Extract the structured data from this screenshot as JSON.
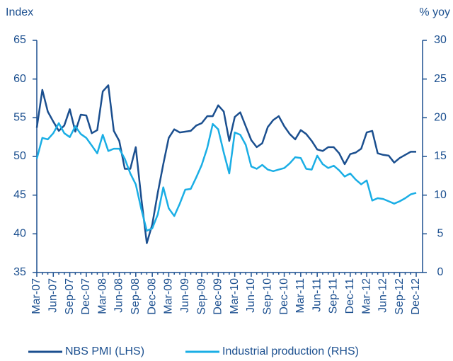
{
  "chart_data": {
    "type": "line",
    "y_label": "Index",
    "y2_label": "% yoy",
    "categories": [
      "Mar-07",
      null,
      null,
      "Jun-07",
      null,
      null,
      "Sep-07",
      null,
      null,
      "Dec-07",
      null,
      null,
      "Mar-08",
      null,
      null,
      "Jun-08",
      null,
      null,
      "Sep-08",
      null,
      null,
      "Dec-08",
      null,
      null,
      "Mar-09",
      null,
      null,
      "Jun-09",
      null,
      null,
      "Sep-09",
      null,
      null,
      "Dec-09",
      null,
      null,
      "Mar-10",
      null,
      null,
      "Jun-10",
      null,
      null,
      "Sep-10",
      null,
      null,
      "Dec-10",
      null,
      null,
      "Mar-11",
      null,
      null,
      "Jun-11",
      null,
      null,
      "Sep-11",
      null,
      null,
      "Dec-11",
      null,
      null,
      "Mar-12",
      null,
      null,
      "Jun-12",
      null,
      null,
      "Sep-12",
      null,
      null,
      "Dec-12"
    ],
    "series": [
      {
        "name": "NBS PMI (LHS)",
        "color": "#1b4f8f",
        "axis": "y",
        "values": [
          53.7,
          58.6,
          55.8,
          54.5,
          53.3,
          54.0,
          56.1,
          53.2,
          55.4,
          55.3,
          53.0,
          53.4,
          58.4,
          59.2,
          53.3,
          52.0,
          48.4,
          48.4,
          51.2,
          44.6,
          38.8,
          41.2,
          45.3,
          49.0,
          52.4,
          53.5,
          53.1,
          53.2,
          53.3,
          54.0,
          54.3,
          55.2,
          55.2,
          56.6,
          55.8,
          52.0,
          55.1,
          55.7,
          53.9,
          52.1,
          51.2,
          51.7,
          53.8,
          54.7,
          55.2,
          53.9,
          52.9,
          52.2,
          53.4,
          52.9,
          52.0,
          50.9,
          50.7,
          51.2,
          51.2,
          50.4,
          49.0,
          50.3,
          50.5,
          51.0,
          53.1,
          53.3,
          50.4,
          50.2,
          50.1,
          49.2,
          49.8,
          50.2,
          50.6,
          50.6
        ]
      },
      {
        "name": "Industrial production (RHS)",
        "color": "#1aaee5",
        "axis": "y2",
        "values": [
          14.7,
          17.4,
          17.2,
          18.0,
          19.3,
          18.0,
          17.5,
          18.9,
          17.9,
          17.4,
          16.4,
          15.4,
          17.8,
          15.7,
          16.0,
          16.0,
          14.7,
          12.8,
          11.4,
          8.2,
          5.4,
          5.7,
          7.5,
          11.0,
          8.3,
          7.3,
          8.9,
          10.7,
          10.8,
          12.3,
          13.9,
          16.1,
          19.2,
          18.5,
          15.5,
          12.8,
          18.1,
          17.8,
          16.5,
          13.7,
          13.4,
          13.9,
          13.3,
          13.1,
          13.3,
          13.5,
          14.1,
          14.9,
          14.8,
          13.4,
          13.3,
          15.1,
          14.0,
          13.5,
          13.8,
          13.2,
          12.4,
          12.8,
          12.0,
          11.4,
          11.9,
          9.3,
          9.6,
          9.5,
          9.2,
          8.9,
          9.2,
          9.6,
          10.1,
          10.3
        ]
      }
    ],
    "ylim": [
      35,
      65
    ],
    "yticks": [
      35,
      40,
      45,
      50,
      55,
      60,
      65
    ],
    "y2lim": [
      0,
      30
    ],
    "y2ticks": [
      0,
      5,
      10,
      15,
      20,
      25,
      30
    ]
  }
}
